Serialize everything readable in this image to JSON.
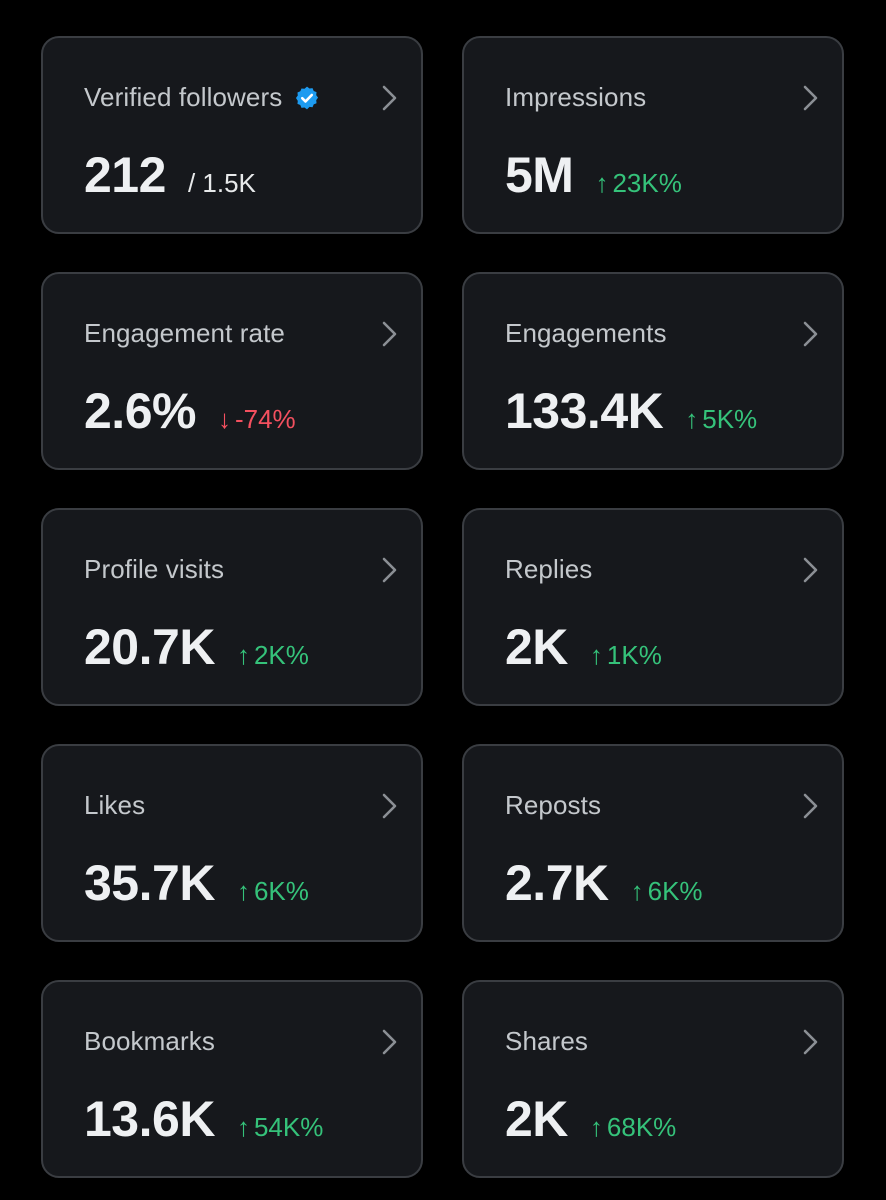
{
  "colors": {
    "background": "#000000",
    "card": "#16181c",
    "card_border": "#3a3d42",
    "positive": "#35c27a",
    "negative": "#f4505f",
    "verified": "#1d9bf0"
  },
  "icons": {
    "verified": "verified-badge-icon",
    "chevron": "chevron-right-icon",
    "up": "arrow-up-icon",
    "down": "arrow-down-icon"
  },
  "cards": [
    {
      "label": "Verified followers",
      "value": "212",
      "sub": "/ 1.5K"
    },
    {
      "label": "Impressions",
      "value": "5M",
      "arrow": "↑",
      "delta": "23K%",
      "trend": "up"
    },
    {
      "label": "Engagement rate",
      "value": "2.6%",
      "arrow": "↓",
      "delta": "-74%",
      "trend": "down"
    },
    {
      "label": "Engagements",
      "value": "133.4K",
      "arrow": "↑",
      "delta": "5K%",
      "trend": "up"
    },
    {
      "label": "Profile visits",
      "value": "20.7K",
      "arrow": "↑",
      "delta": "2K%",
      "trend": "up"
    },
    {
      "label": "Replies",
      "value": "2K",
      "arrow": "↑",
      "delta": "1K%",
      "trend": "up"
    },
    {
      "label": "Likes",
      "value": "35.7K",
      "arrow": "↑",
      "delta": "6K%",
      "trend": "up"
    },
    {
      "label": "Reposts",
      "value": "2.7K",
      "arrow": "↑",
      "delta": "6K%",
      "trend": "up"
    },
    {
      "label": "Bookmarks",
      "value": "13.6K",
      "arrow": "↑",
      "delta": "54K%",
      "trend": "up"
    },
    {
      "label": "Shares",
      "value": "2K",
      "arrow": "↑",
      "delta": "68K%",
      "trend": "up"
    }
  ]
}
